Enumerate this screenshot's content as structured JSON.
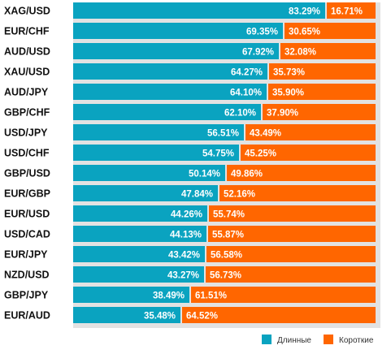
{
  "colors": {
    "long": "#0aa3c0",
    "short": "#ff6600",
    "panel": "#e2e2e2"
  },
  "legend": {
    "long_label": "Длинные",
    "short_label": "Короткие",
    "placement": "bottom-right"
  },
  "chart_data": {
    "type": "bar",
    "stacked": true,
    "orientation": "horizontal",
    "xlim": [
      0,
      100
    ],
    "grid": false,
    "legend_placement": "bottom-right",
    "categories": [
      "XAG/USD",
      "EUR/CHF",
      "AUD/USD",
      "XAU/USD",
      "AUD/JPY",
      "GBP/CHF",
      "USD/JPY",
      "USD/CHF",
      "GBP/USD",
      "EUR/GBP",
      "EUR/USD",
      "USD/CAD",
      "EUR/JPY",
      "NZD/USD",
      "GBP/JPY",
      "EUR/AUD"
    ],
    "series": [
      {
        "name": "Длинные",
        "values": [
          83.29,
          69.35,
          67.92,
          64.27,
          64.1,
          62.1,
          56.51,
          54.75,
          50.14,
          47.84,
          44.26,
          44.13,
          43.42,
          43.27,
          38.49,
          35.48
        ],
        "labels": [
          "83.29%",
          "69.35%",
          "67.92%",
          "64.27%",
          "64.10%",
          "62.10%",
          "56.51%",
          "54.75%",
          "50.14%",
          "47.84%",
          "44.26%",
          "44.13%",
          "43.42%",
          "43.27%",
          "38.49%",
          "35.48%"
        ]
      },
      {
        "name": "Короткие",
        "values": [
          16.71,
          30.65,
          32.08,
          35.73,
          35.9,
          37.9,
          43.49,
          45.25,
          49.86,
          52.16,
          55.74,
          55.87,
          56.58,
          56.73,
          61.51,
          64.52
        ],
        "labels": [
          "16.71%",
          "30.65%",
          "32.08%",
          "35.73%",
          "35.90%",
          "37.90%",
          "43.49%",
          "45.25%",
          "49.86%",
          "52.16%",
          "55.74%",
          "55.87%",
          "56.58%",
          "56.73%",
          "61.51%",
          "64.52%"
        ]
      }
    ]
  }
}
